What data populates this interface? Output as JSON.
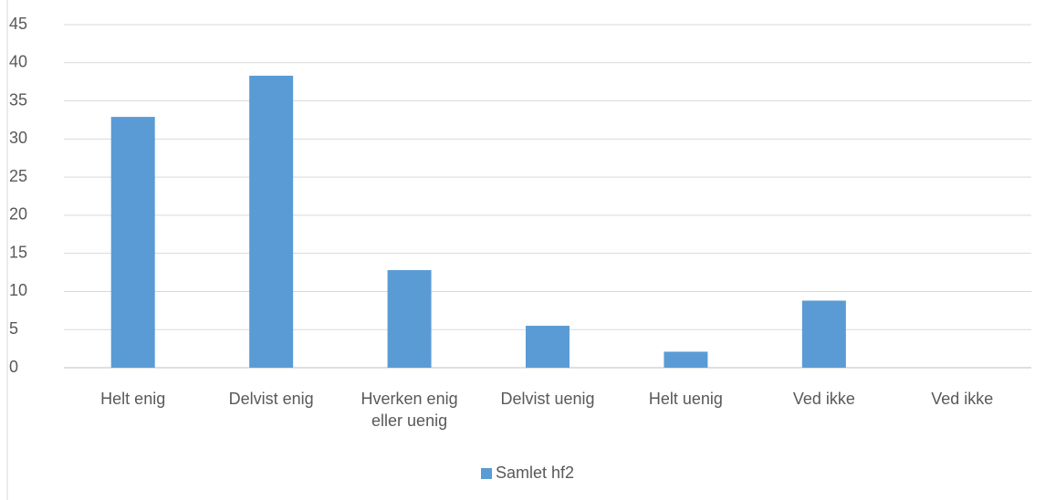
{
  "chart_data": {
    "type": "bar",
    "categories": [
      "Helt enig",
      "Delvist enig",
      "Hverken enig eller uenig",
      "Delvist uenig",
      "Helt uenig",
      "Ved ikke",
      "Ved ikke"
    ],
    "series": [
      {
        "name": "Samlet hf2",
        "color": "#5b9bd5",
        "values": [
          32.9,
          38.3,
          12.8,
          5.5,
          2.1,
          8.8,
          0
        ]
      }
    ],
    "ylim": [
      0,
      45
    ],
    "yticks": [
      0,
      5,
      10,
      15,
      20,
      25,
      30,
      35,
      40,
      45
    ],
    "grid": true,
    "legend": "bottom"
  }
}
